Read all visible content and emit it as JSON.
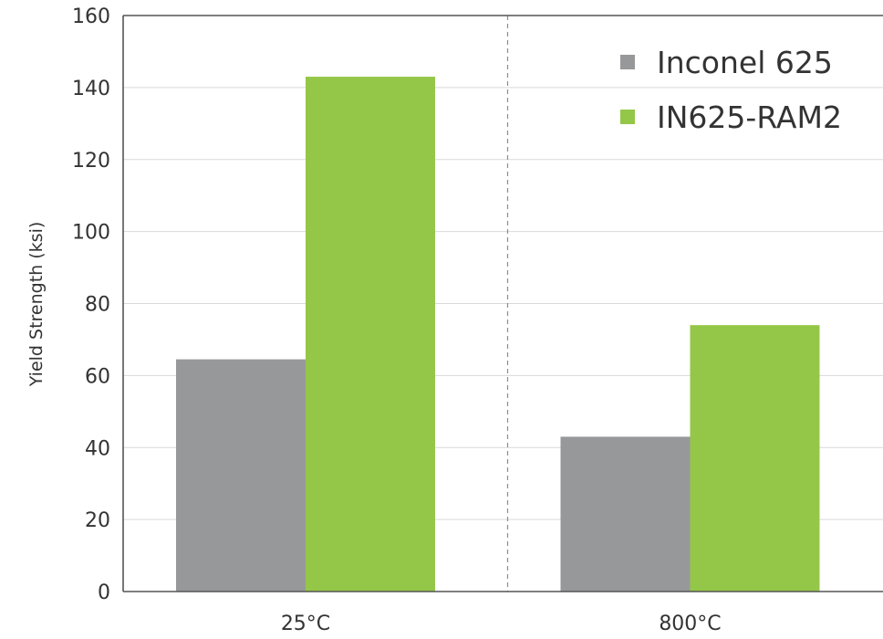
{
  "chart_data": {
    "type": "bar",
    "title": "",
    "xlabel": "",
    "ylabel": "Yield Strength (ksi)",
    "ylim": [
      0,
      160
    ],
    "yticks": [
      0,
      20,
      40,
      60,
      80,
      100,
      120,
      140,
      160
    ],
    "categories": [
      "25°C",
      "800°C"
    ],
    "series": [
      {
        "name": "Inconel 625",
        "values": [
          64.5,
          43
        ],
        "color": "#97989a"
      },
      {
        "name": "IN625-RAM2",
        "values": [
          143,
          74
        ],
        "color": "#94c748"
      }
    ],
    "grid": true,
    "category_separator": "dashed",
    "legend_position": "top-right"
  }
}
